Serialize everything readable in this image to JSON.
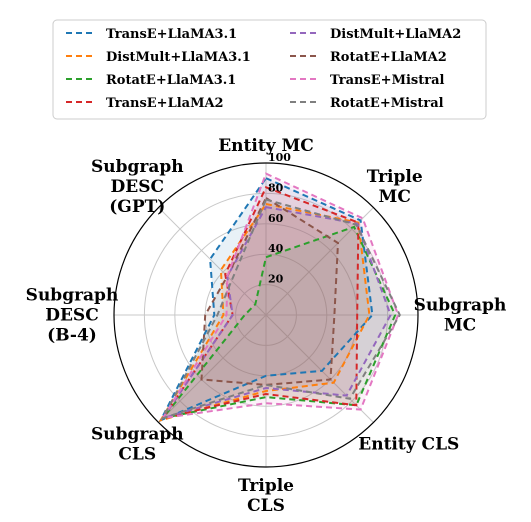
{
  "chart_data": {
    "type": "radar",
    "axes": [
      {
        "id": "entity-mc",
        "lines": [
          "Entity MC"
        ]
      },
      {
        "id": "triple-mc",
        "lines": [
          "Triple",
          "MC"
        ]
      },
      {
        "id": "subgraph-mc",
        "lines": [
          "Subgraph",
          "MC"
        ]
      },
      {
        "id": "entity-cls",
        "lines": [
          "Entity CLS"
        ]
      },
      {
        "id": "triple-cls",
        "lines": [
          "Triple",
          "CLS"
        ]
      },
      {
        "id": "subgraph-cls",
        "lines": [
          "Subgraph",
          "CLS"
        ]
      },
      {
        "id": "subgraph-desc-b4",
        "lines": [
          "Subgraph",
          "DESC",
          "(B-4)"
        ]
      },
      {
        "id": "subgraph-desc-gpt",
        "lines": [
          "Subgraph",
          "DESC",
          "(GPT)"
        ]
      }
    ],
    "radial_ticks": [
      "20",
      "40",
      "60",
      "80",
      "100"
    ],
    "rlim": [
      0,
      100
    ],
    "grid": true,
    "legend": {
      "placement": "top",
      "columns": 2
    },
    "series": [
      {
        "name": "TransE+LlaMA3.1",
        "color": "#1f77b4",
        "values": [
          90,
          88,
          70,
          52,
          40,
          98,
          34,
          52
        ]
      },
      {
        "name": "DistMult+LlaMA3.1",
        "color": "#ff7f0e",
        "values": [
          73,
          86,
          68,
          63,
          50,
          98,
          28,
          42
        ]
      },
      {
        "name": "RotatE+LlaMA3.1",
        "color": "#2ca02c",
        "values": [
          38,
          82,
          85,
          84,
          54,
          96,
          14,
          10
        ]
      },
      {
        "name": "TransE+LlaMA2",
        "color": "#d62728",
        "values": [
          84,
          86,
          60,
          84,
          52,
          96,
          22,
          38
        ]
      },
      {
        "name": "DistMult+LlaMA2",
        "color": "#9467bd",
        "values": [
          71,
          85,
          82,
          75,
          48,
          96,
          22,
          36
        ]
      },
      {
        "name": "RotatE+LlaMA2",
        "color": "#8c564b",
        "values": [
          77,
          67,
          45,
          60,
          46,
          60,
          40,
          36
        ]
      },
      {
        "name": "TransE+Mistral",
        "color": "#e377c2",
        "values": [
          93,
          90,
          87,
          88,
          58,
          96,
          26,
          36
        ]
      },
      {
        "name": "RotatE+Mistral",
        "color": "#7f7f7f",
        "values": [
          76,
          84,
          88,
          78,
          46,
          96,
          32,
          32
        ]
      }
    ]
  }
}
